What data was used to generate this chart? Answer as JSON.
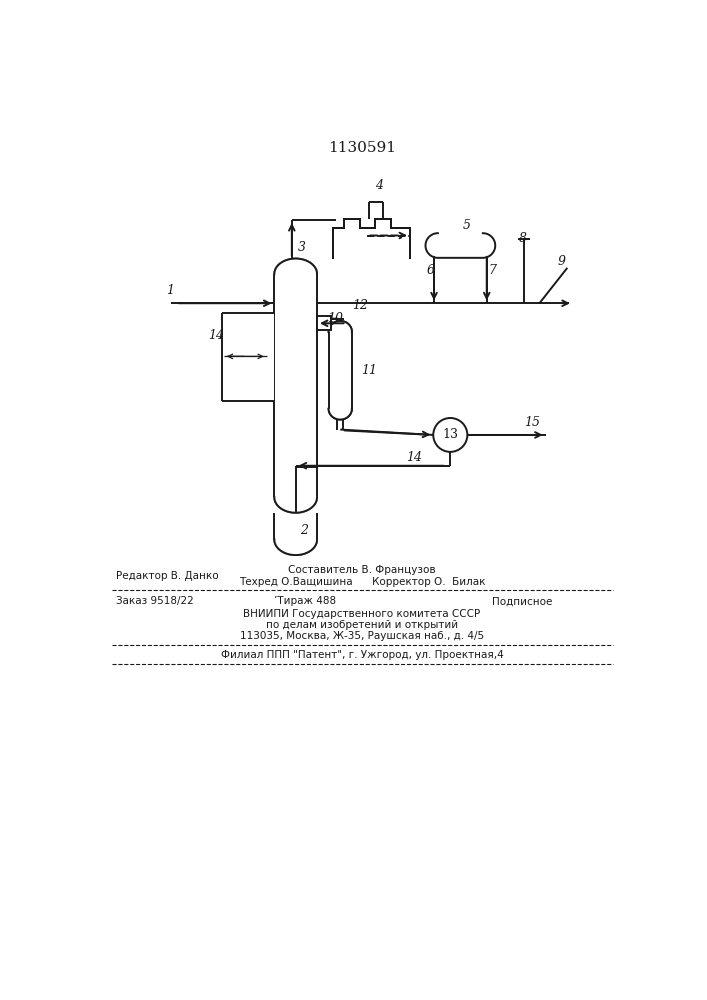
{
  "title": "1130591",
  "bg_color": "#ffffff",
  "line_color": "#1a1a1a",
  "fig_width": 7.07,
  "fig_height": 10.0,
  "dpi": 100,
  "footer": {
    "editor": "Редактор В. Данко",
    "composer": "Составитель В. Французов",
    "techred": "Техред О.Ващишина",
    "corrector": "Корректор О.  Билак",
    "order": "Заказ 9518/22",
    "tirazh": "Тираж 488",
    "podpisnoe": "Подписное",
    "vniipи": "ВНИИПИ Государственного комитета СССР",
    "po_delam": "по делам изобретений и открытий",
    "address": "113035, Москва, Ж-35, Раушская наб., д. 4/5",
    "filial": "Филиал ППП \"Патент\", г. Ужгород, ул. Проектная,4"
  }
}
